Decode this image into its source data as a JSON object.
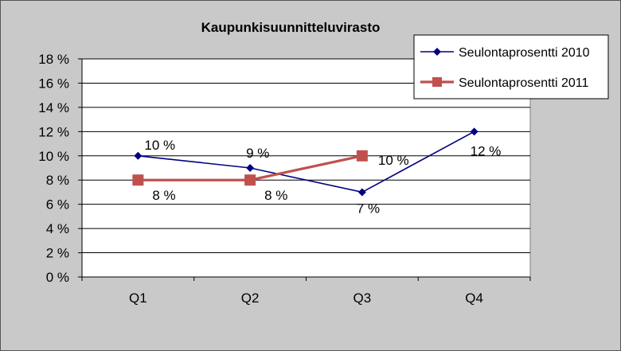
{
  "chart_data": {
    "type": "line",
    "title": "Kaupunkisuunnitteluvirasto",
    "categories": [
      "Q1",
      "Q2",
      "Q3",
      "Q4"
    ],
    "ylim": [
      0,
      18
    ],
    "yticks": [
      0,
      2,
      4,
      6,
      8,
      10,
      12,
      14,
      16,
      18
    ],
    "ytick_labels": [
      "0 %",
      "2 %",
      "4 %",
      "6 %",
      "8 %",
      "10 %",
      "12 %",
      "14 %",
      "16 %",
      "18 %"
    ],
    "grid": true,
    "legend_position": "top-right",
    "series": [
      {
        "name": "Seulontaprosentti 2010",
        "values": [
          10,
          9,
          7,
          12
        ],
        "labels": [
          "10 %",
          "9 %",
          "7 %",
          "12 %"
        ],
        "color": "#000080",
        "marker": "diamond"
      },
      {
        "name": "Seulontaprosentti 2011",
        "values": [
          8,
          8,
          10,
          null
        ],
        "labels": [
          "8 %",
          "8 %",
          "10 %",
          ""
        ],
        "color": "#c0504d",
        "marker": "square"
      }
    ]
  }
}
